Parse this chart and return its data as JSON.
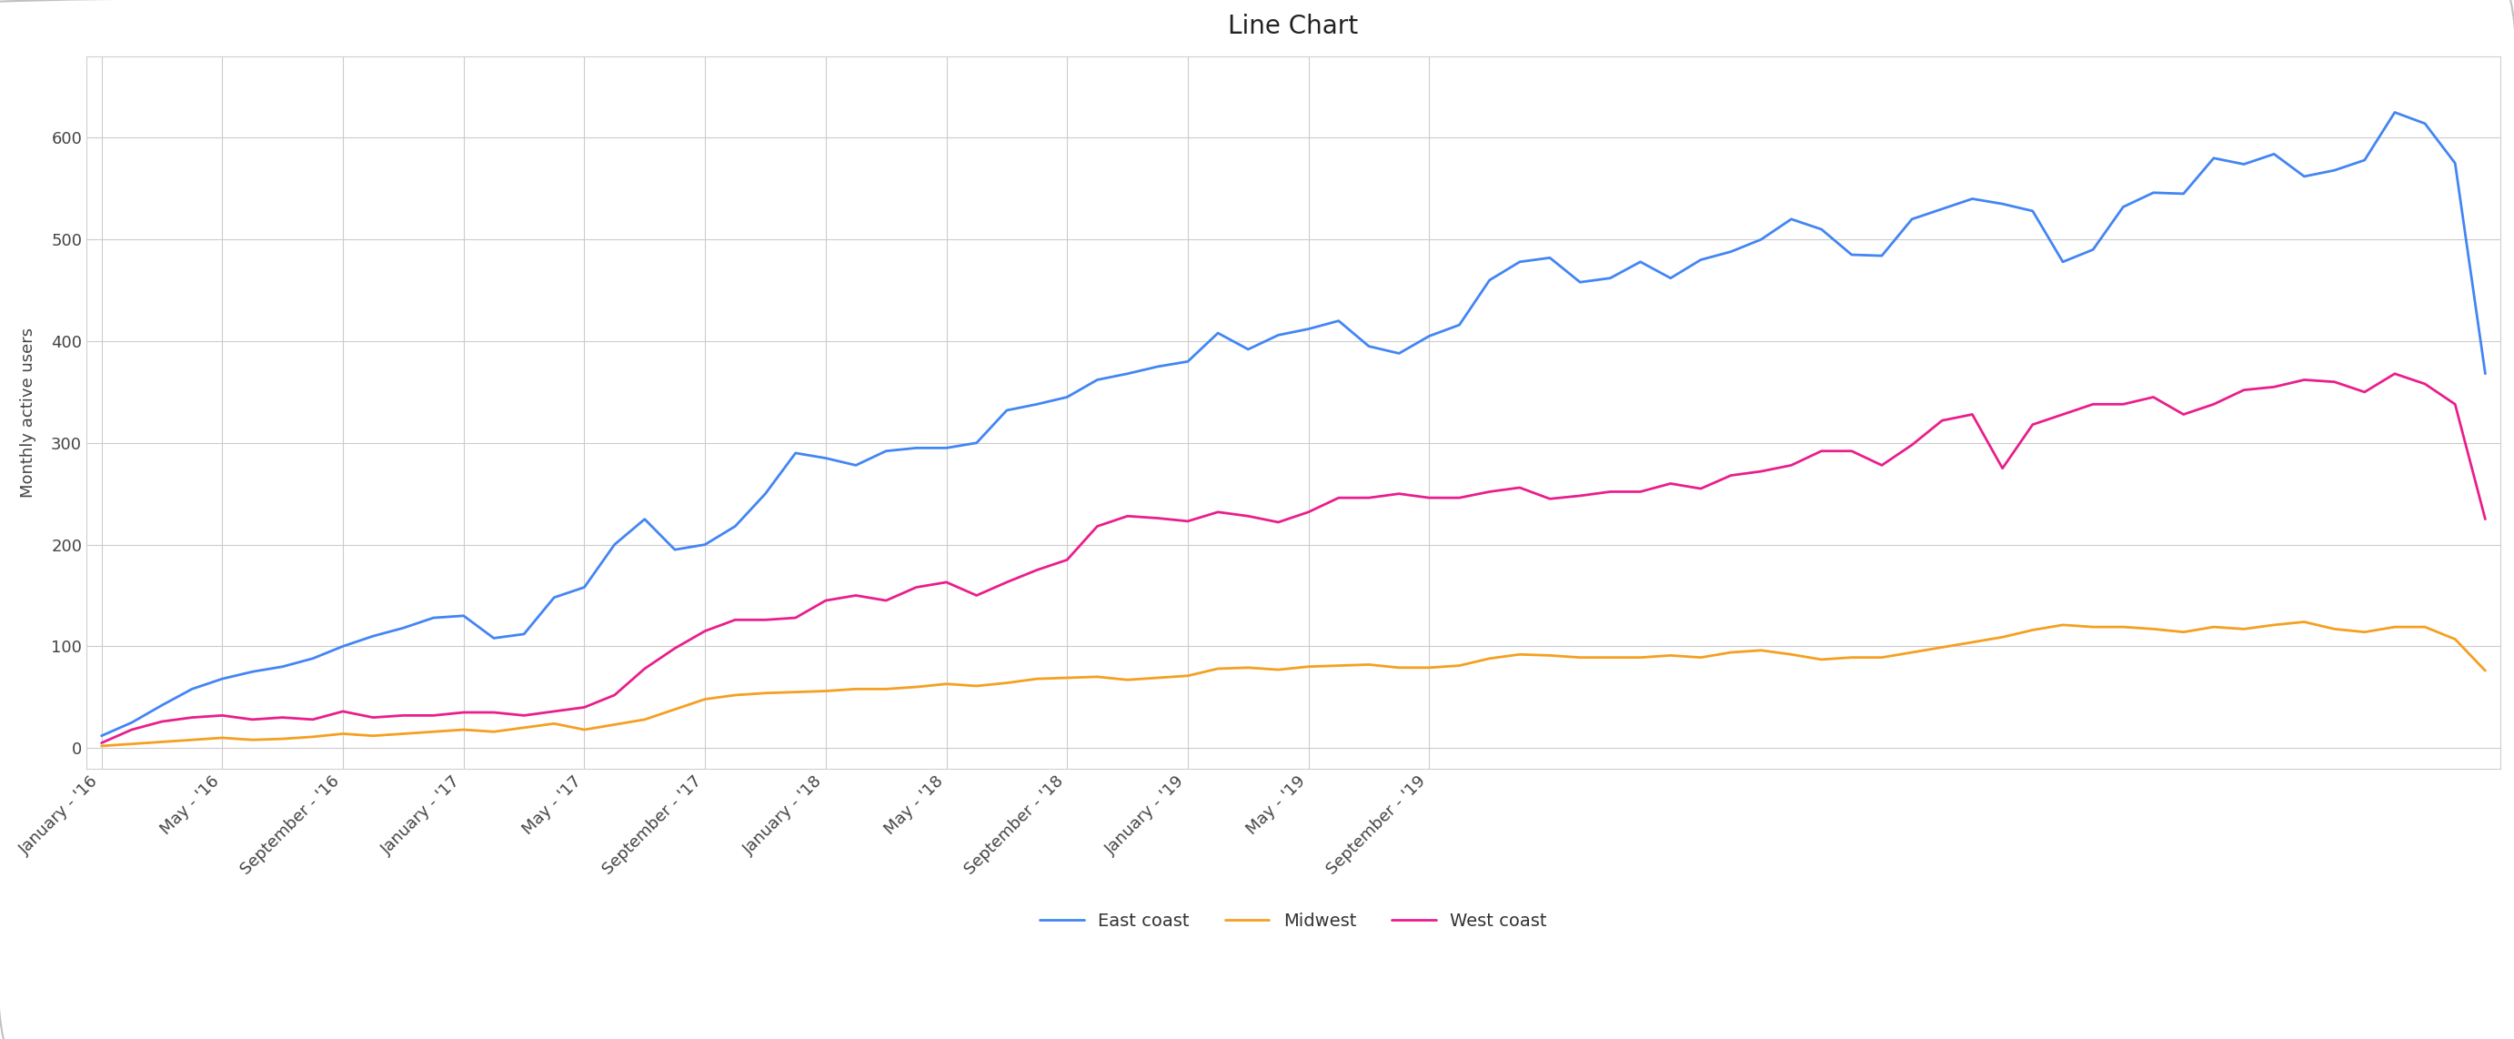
{
  "title": "Line Chart",
  "ylabel": "Monthly active users",
  "background_color": "#ffffff",
  "plot_bg_color": "#ffffff",
  "grid_color": "#cccccc",
  "title_fontsize": 20,
  "axis_fontsize": 13,
  "legend_fontsize": 14,
  "line_width": 2,
  "series": [
    {
      "name": "East coast",
      "color": "#4285F4",
      "values": [
        12,
        25,
        42,
        58,
        68,
        75,
        80,
        88,
        100,
        110,
        118,
        128,
        130,
        108,
        112,
        148,
        158,
        200,
        225,
        195,
        200,
        218,
        250,
        290,
        285,
        278,
        292,
        295,
        295,
        300,
        332,
        338,
        345,
        362,
        368,
        375,
        380,
        408,
        392,
        406,
        412,
        420,
        395,
        388,
        405,
        416,
        460,
        478,
        482,
        458,
        462,
        478,
        462,
        480,
        488,
        500,
        520,
        510,
        485,
        484,
        520,
        530,
        540,
        535,
        528,
        478,
        490,
        532,
        546,
        545,
        580,
        574,
        584,
        562,
        568,
        578,
        625,
        614,
        575,
        368
      ]
    },
    {
      "name": "Midwest",
      "color": "#F4A020",
      "values": [
        2,
        4,
        6,
        8,
        10,
        8,
        9,
        11,
        14,
        12,
        14,
        16,
        18,
        16,
        20,
        24,
        18,
        23,
        28,
        38,
        48,
        52,
        54,
        55,
        56,
        58,
        58,
        60,
        63,
        61,
        64,
        68,
        69,
        70,
        67,
        69,
        71,
        78,
        79,
        77,
        80,
        81,
        82,
        79,
        79,
        81,
        88,
        92,
        91,
        89,
        89,
        89,
        91,
        89,
        94,
        96,
        92,
        87,
        89,
        89,
        94,
        99,
        104,
        109,
        116,
        121,
        119,
        119,
        117,
        114,
        119,
        117,
        121,
        124,
        117,
        114,
        119,
        119,
        107,
        76
      ]
    },
    {
      "name": "West coast",
      "color": "#E91E8C",
      "values": [
        5,
        18,
        26,
        30,
        32,
        28,
        30,
        28,
        36,
        30,
        32,
        32,
        35,
        35,
        32,
        36,
        40,
        52,
        78,
        98,
        115,
        126,
        126,
        128,
        145,
        150,
        145,
        158,
        163,
        150,
        163,
        175,
        185,
        218,
        228,
        226,
        223,
        232,
        228,
        222,
        232,
        246,
        246,
        250,
        246,
        246,
        252,
        256,
        245,
        248,
        252,
        252,
        260,
        255,
        268,
        272,
        278,
        292,
        292,
        278,
        298,
        322,
        328,
        275,
        318,
        328,
        338,
        338,
        345,
        328,
        338,
        352,
        355,
        362,
        360,
        350,
        368,
        358,
        338,
        225
      ]
    }
  ],
  "x_tick_positions": [
    0,
    4,
    8,
    12,
    16,
    20,
    24,
    28,
    32,
    36,
    40,
    44
  ],
  "x_tick_labels": [
    "January - '16",
    "May - '16",
    "September - '16",
    "January - '17",
    "May - '17",
    "September - '17",
    "January - '18",
    "May - '18",
    "September - '18",
    "January - '19",
    "May - '19",
    "September - '19"
  ],
  "yticks": [
    0,
    100,
    200,
    300,
    400,
    500,
    600
  ],
  "ylim": [
    -20,
    680
  ],
  "xlim": [
    -0.5,
    79.5
  ],
  "outer_border_color": "#c0c0c0",
  "outer_border_linewidth": 1.5
}
